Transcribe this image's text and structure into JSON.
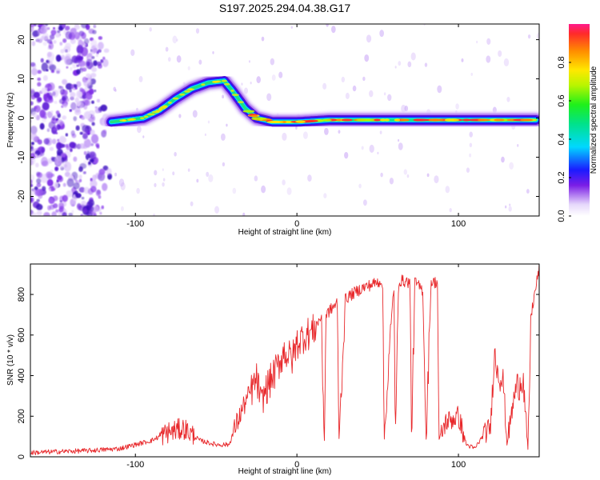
{
  "title": "S197.2025.294.04.38.G17",
  "chart_data": [
    {
      "type": "heatmap",
      "xlabel": "Height of straight line (km)",
      "ylabel": "Frequency (Hz)",
      "xlim": [
        -165,
        150
      ],
      "ylim": [
        -25,
        24
      ],
      "xticks": [
        -100,
        0,
        100
      ],
      "xtick_labels": [
        "-100",
        "0",
        "100"
      ],
      "yticks": [
        -20,
        -10,
        0,
        10,
        20
      ],
      "ytick_labels": [
        "-20",
        "-10",
        "0",
        "10",
        "20"
      ],
      "colorbar": {
        "label": "Normalized spectral amplitude",
        "range": [
          0,
          1
        ],
        "ticks": [
          0,
          0.2,
          0.4,
          0.6,
          0.8
        ],
        "tick_labels": [
          "0.0",
          "0.2",
          "0.4",
          "0.6",
          "0.8"
        ]
      },
      "ridge": {
        "x": [
          -115,
          -105,
          -95,
          -85,
          -75,
          -65,
          -55,
          -45,
          -40,
          -32,
          -25,
          -15,
          0,
          20,
          50,
          80,
          110,
          148
        ],
        "y": [
          -1,
          -0.5,
          0,
          2,
          5,
          7.5,
          9,
          9.5,
          7,
          2.5,
          0,
          -1,
          -1,
          -0.5,
          -0.5,
          -0.5,
          -0.5,
          -0.5
        ]
      }
    },
    {
      "type": "line",
      "xlabel": "Height of straight line (km)",
      "ylabel": "SNR (10 * v/v)",
      "xlim": [
        -165,
        150
      ],
      "ylim": [
        0,
        950
      ],
      "xticks": [
        -100,
        0,
        100
      ],
      "xtick_labels": [
        "-100",
        "0",
        "100"
      ],
      "yticks": [
        0,
        200,
        400,
        600,
        800
      ],
      "ytick_labels": [
        "0",
        "200",
        "400",
        "600",
        "800"
      ],
      "series": [
        {
          "name": "SNR",
          "color": "#e8282b",
          "x": [
            -165,
            -150,
            -130,
            -110,
            -100,
            -90,
            -80,
            -70,
            -60,
            -50,
            -42,
            -38,
            -33,
            -28,
            -25,
            -22,
            -18,
            -12,
            -8,
            -3,
            0,
            5,
            10,
            15,
            17,
            18,
            25,
            26,
            30,
            40,
            50,
            53,
            54,
            60,
            61,
            63,
            70,
            71,
            73,
            78,
            80,
            83,
            87,
            88,
            92,
            100,
            105,
            110,
            115,
            120,
            122,
            128,
            130,
            135,
            140,
            143,
            145,
            150
          ],
          "y": [
            20,
            25,
            30,
            40,
            60,
            80,
            120,
            140,
            80,
            60,
            60,
            150,
            250,
            330,
            380,
            280,
            350,
            440,
            520,
            480,
            560,
            600,
            620,
            690,
            80,
            700,
            760,
            80,
            780,
            830,
            860,
            870,
            80,
            860,
            80,
            870,
            860,
            80,
            860,
            820,
            80,
            860,
            860,
            80,
            170,
            200,
            60,
            40,
            100,
            150,
            500,
            350,
            60,
            320,
            400,
            30,
            700,
            930
          ]
        }
      ]
    }
  ]
}
